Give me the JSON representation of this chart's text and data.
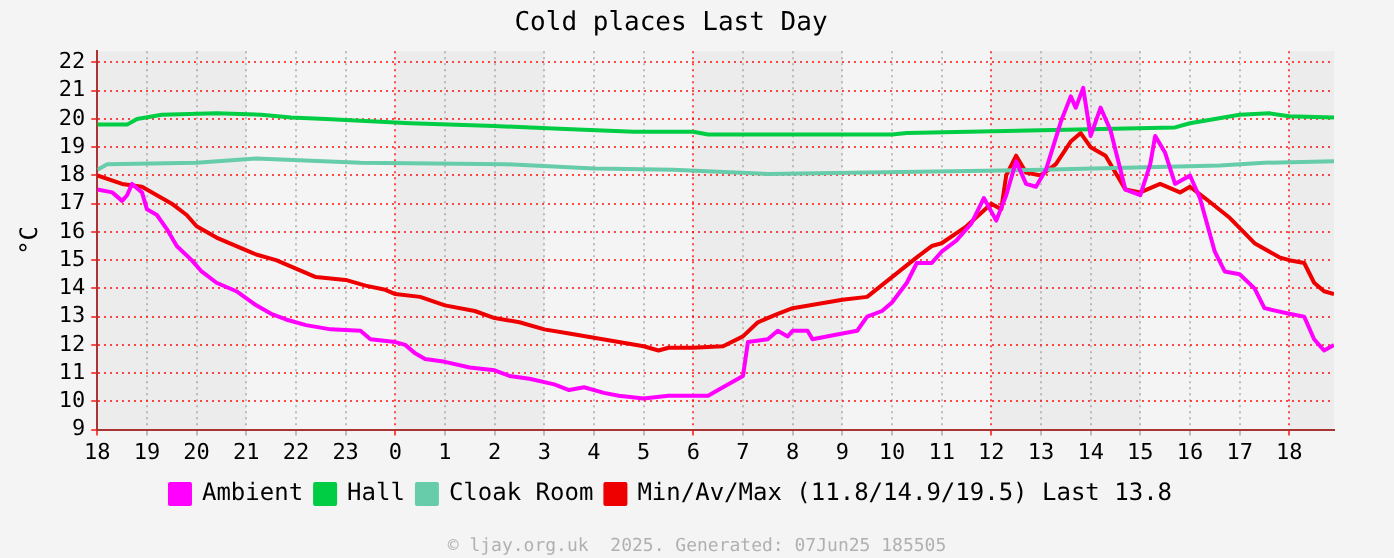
{
  "chart_data": {
    "type": "line",
    "title": "Cold places Last Day",
    "ylabel": "°C",
    "annotations": [
      "© ljay.org.uk  2025. Generated: 07Jun25 185505"
    ],
    "xlim": [
      "2025-06-06T18:00",
      "2025-06-07T18:54"
    ],
    "xticks": [
      {
        "value": "2025-06-06T18:00",
        "label": "18"
      },
      {
        "value": "2025-06-06T19:00",
        "label": "19"
      },
      {
        "value": "2025-06-06T20:00",
        "label": "20"
      },
      {
        "value": "2025-06-06T21:00",
        "label": "21"
      },
      {
        "value": "2025-06-06T22:00",
        "label": "22"
      },
      {
        "value": "2025-06-06T23:00",
        "label": "23"
      },
      {
        "value": "2025-06-07T00:00",
        "label": "0"
      },
      {
        "value": "2025-06-07T01:00",
        "label": "1"
      },
      {
        "value": "2025-06-07T02:00",
        "label": "2"
      },
      {
        "value": "2025-06-07T03:00",
        "label": "3"
      },
      {
        "value": "2025-06-07T04:00",
        "label": "4"
      },
      {
        "value": "2025-06-07T05:00",
        "label": "5"
      },
      {
        "value": "2025-06-07T06:00",
        "label": "6"
      },
      {
        "value": "2025-06-07T07:00",
        "label": "7"
      },
      {
        "value": "2025-06-07T08:00",
        "label": "8"
      },
      {
        "value": "2025-06-07T09:00",
        "label": "9"
      },
      {
        "value": "2025-06-07T10:00",
        "label": "10"
      },
      {
        "value": "2025-06-07T11:00",
        "label": "11"
      },
      {
        "value": "2025-06-07T12:00",
        "label": "12"
      },
      {
        "value": "2025-06-07T13:00",
        "label": "13"
      },
      {
        "value": "2025-06-07T14:00",
        "label": "14"
      },
      {
        "value": "2025-06-07T15:00",
        "label": "15"
      },
      {
        "value": "2025-06-07T16:00",
        "label": "16"
      },
      {
        "value": "2025-06-07T17:00",
        "label": "17"
      },
      {
        "value": "2025-06-07T18:00",
        "label": "18"
      }
    ],
    "ylim": [
      9,
      22.4
    ],
    "yticks": [
      9,
      10,
      11,
      12,
      13,
      14,
      15,
      16,
      17,
      18,
      19,
      20,
      21,
      22
    ],
    "grid": true,
    "legend": "bottom",
    "marker": "none",
    "line_style": "solid",
    "bands": [
      {
        "axis": "x",
        "from": "2025-06-06T18:00",
        "to": "2025-06-06T21:00",
        "color": "#ececec"
      },
      {
        "axis": "x",
        "from": "2025-06-07T00:00",
        "to": "2025-06-07T03:00",
        "color": "#ececec"
      },
      {
        "axis": "x",
        "from": "2025-06-07T06:00",
        "to": "2025-06-07T09:00",
        "color": "#ececec"
      },
      {
        "axis": "x",
        "from": "2025-06-07T12:00",
        "to": "2025-06-07T15:00",
        "color": "#ececec"
      },
      {
        "axis": "x",
        "from": "2025-06-07T18:00",
        "to": "2025-06-07T18:54",
        "color": "#ececec"
      }
    ],
    "series": [
      {
        "name": "Ambient",
        "color": "#ff00ff",
        "x": [
          "2025-06-06T18:00",
          "2025-06-06T18:18",
          "2025-06-06T18:30",
          "2025-06-06T18:36",
          "2025-06-06T18:42",
          "2025-06-06T18:54",
          "2025-06-06T19:00",
          "2025-06-06T19:12",
          "2025-06-06T19:24",
          "2025-06-06T19:36",
          "2025-06-06T19:54",
          "2025-06-06T20:06",
          "2025-06-06T20:24",
          "2025-06-06T20:48",
          "2025-06-06T21:12",
          "2025-06-06T21:30",
          "2025-06-06T21:48",
          "2025-06-06T22:12",
          "2025-06-06T22:42",
          "2025-06-06T23:18",
          "2025-06-06T23:30",
          "2025-06-07T00:00",
          "2025-06-07T00:12",
          "2025-06-07T00:24",
          "2025-06-07T00:36",
          "2025-06-07T01:00",
          "2025-06-07T01:30",
          "2025-06-07T02:00",
          "2025-06-07T02:18",
          "2025-06-07T02:42",
          "2025-06-07T03:12",
          "2025-06-07T03:30",
          "2025-06-07T03:48",
          "2025-06-07T04:12",
          "2025-06-07T04:30",
          "2025-06-07T05:00",
          "2025-06-07T05:30",
          "2025-06-07T06:00",
          "2025-06-07T06:18",
          "2025-06-07T06:30",
          "2025-06-07T07:00",
          "2025-06-07T07:06",
          "2025-06-07T07:30",
          "2025-06-07T07:42",
          "2025-06-07T07:54",
          "2025-06-07T08:00",
          "2025-06-07T08:18",
          "2025-06-07T08:24",
          "2025-06-07T09:00",
          "2025-06-07T09:18",
          "2025-06-07T09:30",
          "2025-06-07T09:48",
          "2025-06-07T10:00",
          "2025-06-07T10:18",
          "2025-06-07T10:30",
          "2025-06-07T10:48",
          "2025-06-07T11:00",
          "2025-06-07T11:18",
          "2025-06-07T11:36",
          "2025-06-07T11:51",
          "2025-06-07T12:06",
          "2025-06-07T12:18",
          "2025-06-07T12:30",
          "2025-06-07T12:42",
          "2025-06-07T12:54",
          "2025-06-07T13:06",
          "2025-06-07T13:24",
          "2025-06-07T13:36",
          "2025-06-07T13:42",
          "2025-06-07T13:51",
          "2025-06-07T14:00",
          "2025-06-07T14:12",
          "2025-06-07T14:24",
          "2025-06-07T14:42",
          "2025-06-07T15:00",
          "2025-06-07T15:12",
          "2025-06-07T15:18",
          "2025-06-07T15:30",
          "2025-06-07T15:42",
          "2025-06-07T16:00",
          "2025-06-07T16:12",
          "2025-06-07T16:30",
          "2025-06-07T16:42",
          "2025-06-07T17:00",
          "2025-06-07T17:18",
          "2025-06-07T17:30",
          "2025-06-07T18:00",
          "2025-06-07T18:18",
          "2025-06-07T18:30",
          "2025-06-07T18:42",
          "2025-06-07T18:54"
        ],
        "values": [
          17.5,
          17.4,
          17.1,
          17.3,
          17.7,
          17.4,
          16.8,
          16.6,
          16.1,
          15.5,
          15,
          14.6,
          14.2,
          13.9,
          13.4,
          13.1,
          12.9,
          12.7,
          12.55,
          12.5,
          12.2,
          12.1,
          12,
          11.7,
          11.5,
          11.4,
          11.2,
          11.1,
          10.9,
          10.8,
          10.6,
          10.4,
          10.5,
          10.3,
          10.2,
          10.1,
          10.2,
          10.2,
          10.2,
          10.4,
          10.9,
          12.1,
          12.2,
          12.5,
          12.3,
          12.5,
          12.5,
          12.2,
          12.4,
          12.5,
          13,
          13.2,
          13.5,
          14.2,
          14.9,
          14.9,
          15.3,
          15.7,
          16.3,
          17.2,
          16.4,
          17.3,
          18.5,
          17.7,
          17.6,
          18.2,
          19.9,
          20.8,
          20.4,
          21.1,
          19.4,
          20.4,
          19.6,
          17.5,
          17.3,
          18.4,
          19.4,
          18.8,
          17.7,
          18,
          17.2,
          15.3,
          14.6,
          14.5,
          14,
          13.3,
          13.1,
          13,
          12.2,
          11.8,
          12
        ]
      },
      {
        "name": "Hall",
        "color": "#00cc44",
        "x": [
          "2025-06-06T18:00",
          "2025-06-06T18:36",
          "2025-06-06T18:48",
          "2025-06-06T19:18",
          "2025-06-06T20:24",
          "2025-06-06T21:18",
          "2025-06-06T21:54",
          "2025-06-06T22:36",
          "2025-06-07T00:18",
          "2025-06-07T02:00",
          "2025-06-07T03:18",
          "2025-06-07T04:48",
          "2025-06-07T06:00",
          "2025-06-07T06:18",
          "2025-06-07T10:00",
          "2025-06-07T10:18",
          "2025-06-07T13:00",
          "2025-06-07T15:42",
          "2025-06-07T16:00",
          "2025-06-07T16:30",
          "2025-06-07T17:00",
          "2025-06-07T17:36",
          "2025-06-07T18:00",
          "2025-06-07T18:54"
        ],
        "values": [
          19.8,
          19.8,
          20,
          20.15,
          20.2,
          20.15,
          20.05,
          20,
          19.85,
          19.75,
          19.65,
          19.55,
          19.55,
          19.45,
          19.45,
          19.5,
          19.6,
          19.7,
          19.85,
          20,
          20.15,
          20.2,
          20.1,
          20.05
        ]
      },
      {
        "name": "Cloak Room",
        "color": "#66ccaa",
        "x": [
          "2025-06-06T18:00",
          "2025-06-06T18:12",
          "2025-06-06T20:00",
          "2025-06-06T21:12",
          "2025-06-06T23:18",
          "2025-06-07T02:12",
          "2025-06-07T04:00",
          "2025-06-07T05:36",
          "2025-06-07T07:30",
          "2025-06-07T13:00",
          "2025-06-07T16:36",
          "2025-06-07T17:30",
          "2025-06-07T18:54"
        ],
        "values": [
          18.2,
          18.4,
          18.45,
          18.6,
          18.45,
          18.4,
          18.25,
          18.2,
          18.05,
          18.2,
          18.35,
          18.45,
          18.5
        ]
      },
      {
        "name": "Min/Av/Max (11.8/14.9/19.5) Last 13.8",
        "color": "#ee0000",
        "x": [
          "2025-06-06T18:00",
          "2025-06-06T18:30",
          "2025-06-06T18:54",
          "2025-06-06T19:12",
          "2025-06-06T19:30",
          "2025-06-06T19:48",
          "2025-06-06T20:00",
          "2025-06-06T20:24",
          "2025-06-06T20:48",
          "2025-06-06T21:12",
          "2025-06-06T21:36",
          "2025-06-06T22:00",
          "2025-06-06T22:24",
          "2025-06-06T23:00",
          "2025-06-06T23:24",
          "2025-06-06T23:48",
          "2025-06-07T00:00",
          "2025-06-07T00:30",
          "2025-06-07T01:00",
          "2025-06-07T01:36",
          "2025-06-07T02:00",
          "2025-06-07T02:30",
          "2025-06-07T03:00",
          "2025-06-07T03:30",
          "2025-06-07T04:00",
          "2025-06-07T04:30",
          "2025-06-07T05:00",
          "2025-06-07T05:18",
          "2025-06-07T05:30",
          "2025-06-07T06:00",
          "2025-06-07T06:36",
          "2025-06-07T07:00",
          "2025-06-07T07:18",
          "2025-06-07T07:42",
          "2025-06-07T08:00",
          "2025-06-07T09:00",
          "2025-06-07T09:30",
          "2025-06-07T10:00",
          "2025-06-07T10:30",
          "2025-06-07T10:48",
          "2025-06-07T11:00",
          "2025-06-07T11:30",
          "2025-06-07T12:00",
          "2025-06-07T12:12",
          "2025-06-07T12:18",
          "2025-06-07T12:30",
          "2025-06-07T12:42",
          "2025-06-07T13:00",
          "2025-06-07T13:18",
          "2025-06-07T13:36",
          "2025-06-07T13:48",
          "2025-06-07T14:00",
          "2025-06-07T14:18",
          "2025-06-07T14:42",
          "2025-06-07T15:00",
          "2025-06-07T15:24",
          "2025-06-07T15:48",
          "2025-06-07T16:00",
          "2025-06-07T16:18",
          "2025-06-07T16:48",
          "2025-06-07T17:18",
          "2025-06-07T17:48",
          "2025-06-07T18:00",
          "2025-06-07T18:18",
          "2025-06-07T18:30",
          "2025-06-07T18:42",
          "2025-06-07T18:54"
        ],
        "values": [
          18,
          17.7,
          17.6,
          17.3,
          17,
          16.6,
          16.2,
          15.8,
          15.5,
          15.2,
          15,
          14.7,
          14.4,
          14.3,
          14.1,
          13.95,
          13.8,
          13.7,
          13.4,
          13.2,
          12.95,
          12.8,
          12.55,
          12.4,
          12.25,
          12.1,
          11.95,
          11.8,
          11.9,
          11.9,
          11.95,
          12.3,
          12.8,
          13.1,
          13.3,
          13.6,
          13.7,
          14.4,
          15.1,
          15.5,
          15.6,
          16.2,
          17,
          16.8,
          18,
          18.7,
          18.1,
          18,
          18.4,
          19.2,
          19.5,
          19,
          18.7,
          17.5,
          17.4,
          17.7,
          17.4,
          17.6,
          17.2,
          16.5,
          15.6,
          15.1,
          15,
          14.9,
          14.2,
          13.9,
          13.8
        ]
      }
    ]
  }
}
